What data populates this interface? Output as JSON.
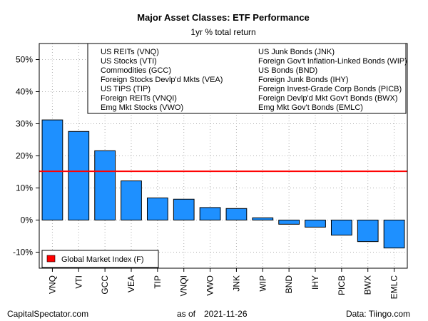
{
  "chart_data": {
    "type": "bar",
    "title": "Major Asset Classes: ETF Performance",
    "subtitle": "1yr % total return",
    "categories": [
      "VNQ",
      "VTI",
      "GCC",
      "VEA",
      "TIP",
      "VNQI",
      "VWO",
      "JNK",
      "WIP",
      "BND",
      "IHY",
      "PICB",
      "BWX",
      "EMLC"
    ],
    "values": [
      31.2,
      27.6,
      21.6,
      12.2,
      6.9,
      6.5,
      3.9,
      3.6,
      0.7,
      -1.3,
      -2.2,
      -4.7,
      -6.7,
      -8.7
    ],
    "ylim": [
      -15,
      55
    ],
    "yticks": [
      -10,
      0,
      10,
      20,
      30,
      40,
      50
    ],
    "ytick_labels": [
      "-10%",
      "0%",
      "10%",
      "20%",
      "30%",
      "40%",
      "50%"
    ],
    "reference_line": {
      "value": 15.2,
      "color": "#ff0000"
    },
    "bar_color": "#1e90ff",
    "grid": true,
    "legend_entries": [
      "US REITs (VNQ)",
      "US Stocks (VTI)",
      "Commodities (GCC)",
      "Foreign Stocks Devlp'd Mkts (VEA)",
      "US TIPS (TIP)",
      "Foreign REITs (VNQI)",
      "Emg Mkt Stocks (VWO)",
      "US Junk Bonds (JNK)",
      "Foreign Gov't Inflation-Linked Bonds (WIP)",
      "US Bonds (BND)",
      "Foreign Junk Bonds (IHY)",
      "Foreign Invest-Grade Corp Bonds (PICB)",
      "Foreign Devlp'd Mkt Gov't Bonds (BWX)",
      "Emg Mkt Gov't Bonds (EMLC)"
    ],
    "reference_legend": "Global Market Index (F)"
  },
  "footer": {
    "source_left": "CapitalSpectator.com",
    "date_label": "as of",
    "date": "2021-11-26",
    "source_right": "Data: Tiingo.com"
  }
}
